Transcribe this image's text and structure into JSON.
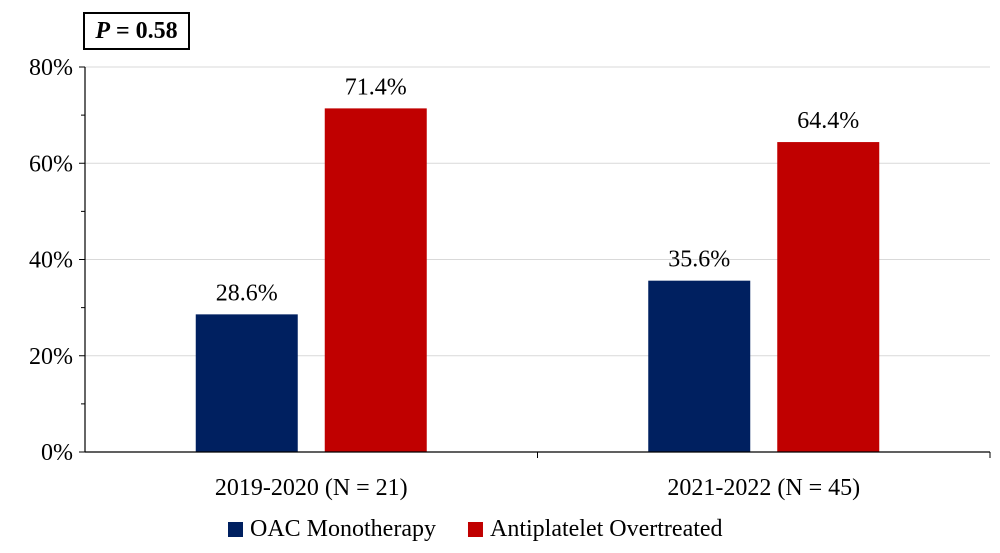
{
  "chart_data": {
    "type": "bar",
    "categories": [
      "2019-2020 (N = 21)",
      "2021-2022 (N = 45)"
    ],
    "series": [
      {
        "name": "OAC Monotherapy",
        "values": [
          28.6,
          35.6
        ],
        "color": "#002060",
        "labels": [
          "28.6%",
          "35.6%"
        ]
      },
      {
        "name": "Antiplatelet Overtreated",
        "values": [
          71.4,
          64.4
        ],
        "color": "#C00000",
        "labels": [
          "71.4%",
          "64.4%"
        ]
      }
    ],
    "ylim": [
      0,
      80
    ],
    "yticks": [
      0,
      20,
      40,
      60,
      80
    ],
    "ytick_labels": [
      "0%",
      "20%",
      "40%",
      "60%",
      "80%"
    ],
    "grid": true,
    "legend_position": "bottom",
    "xlabel": "",
    "ylabel": "",
    "title": "",
    "annotation": {
      "p_letter": "P",
      "text": " = 0.58"
    }
  }
}
